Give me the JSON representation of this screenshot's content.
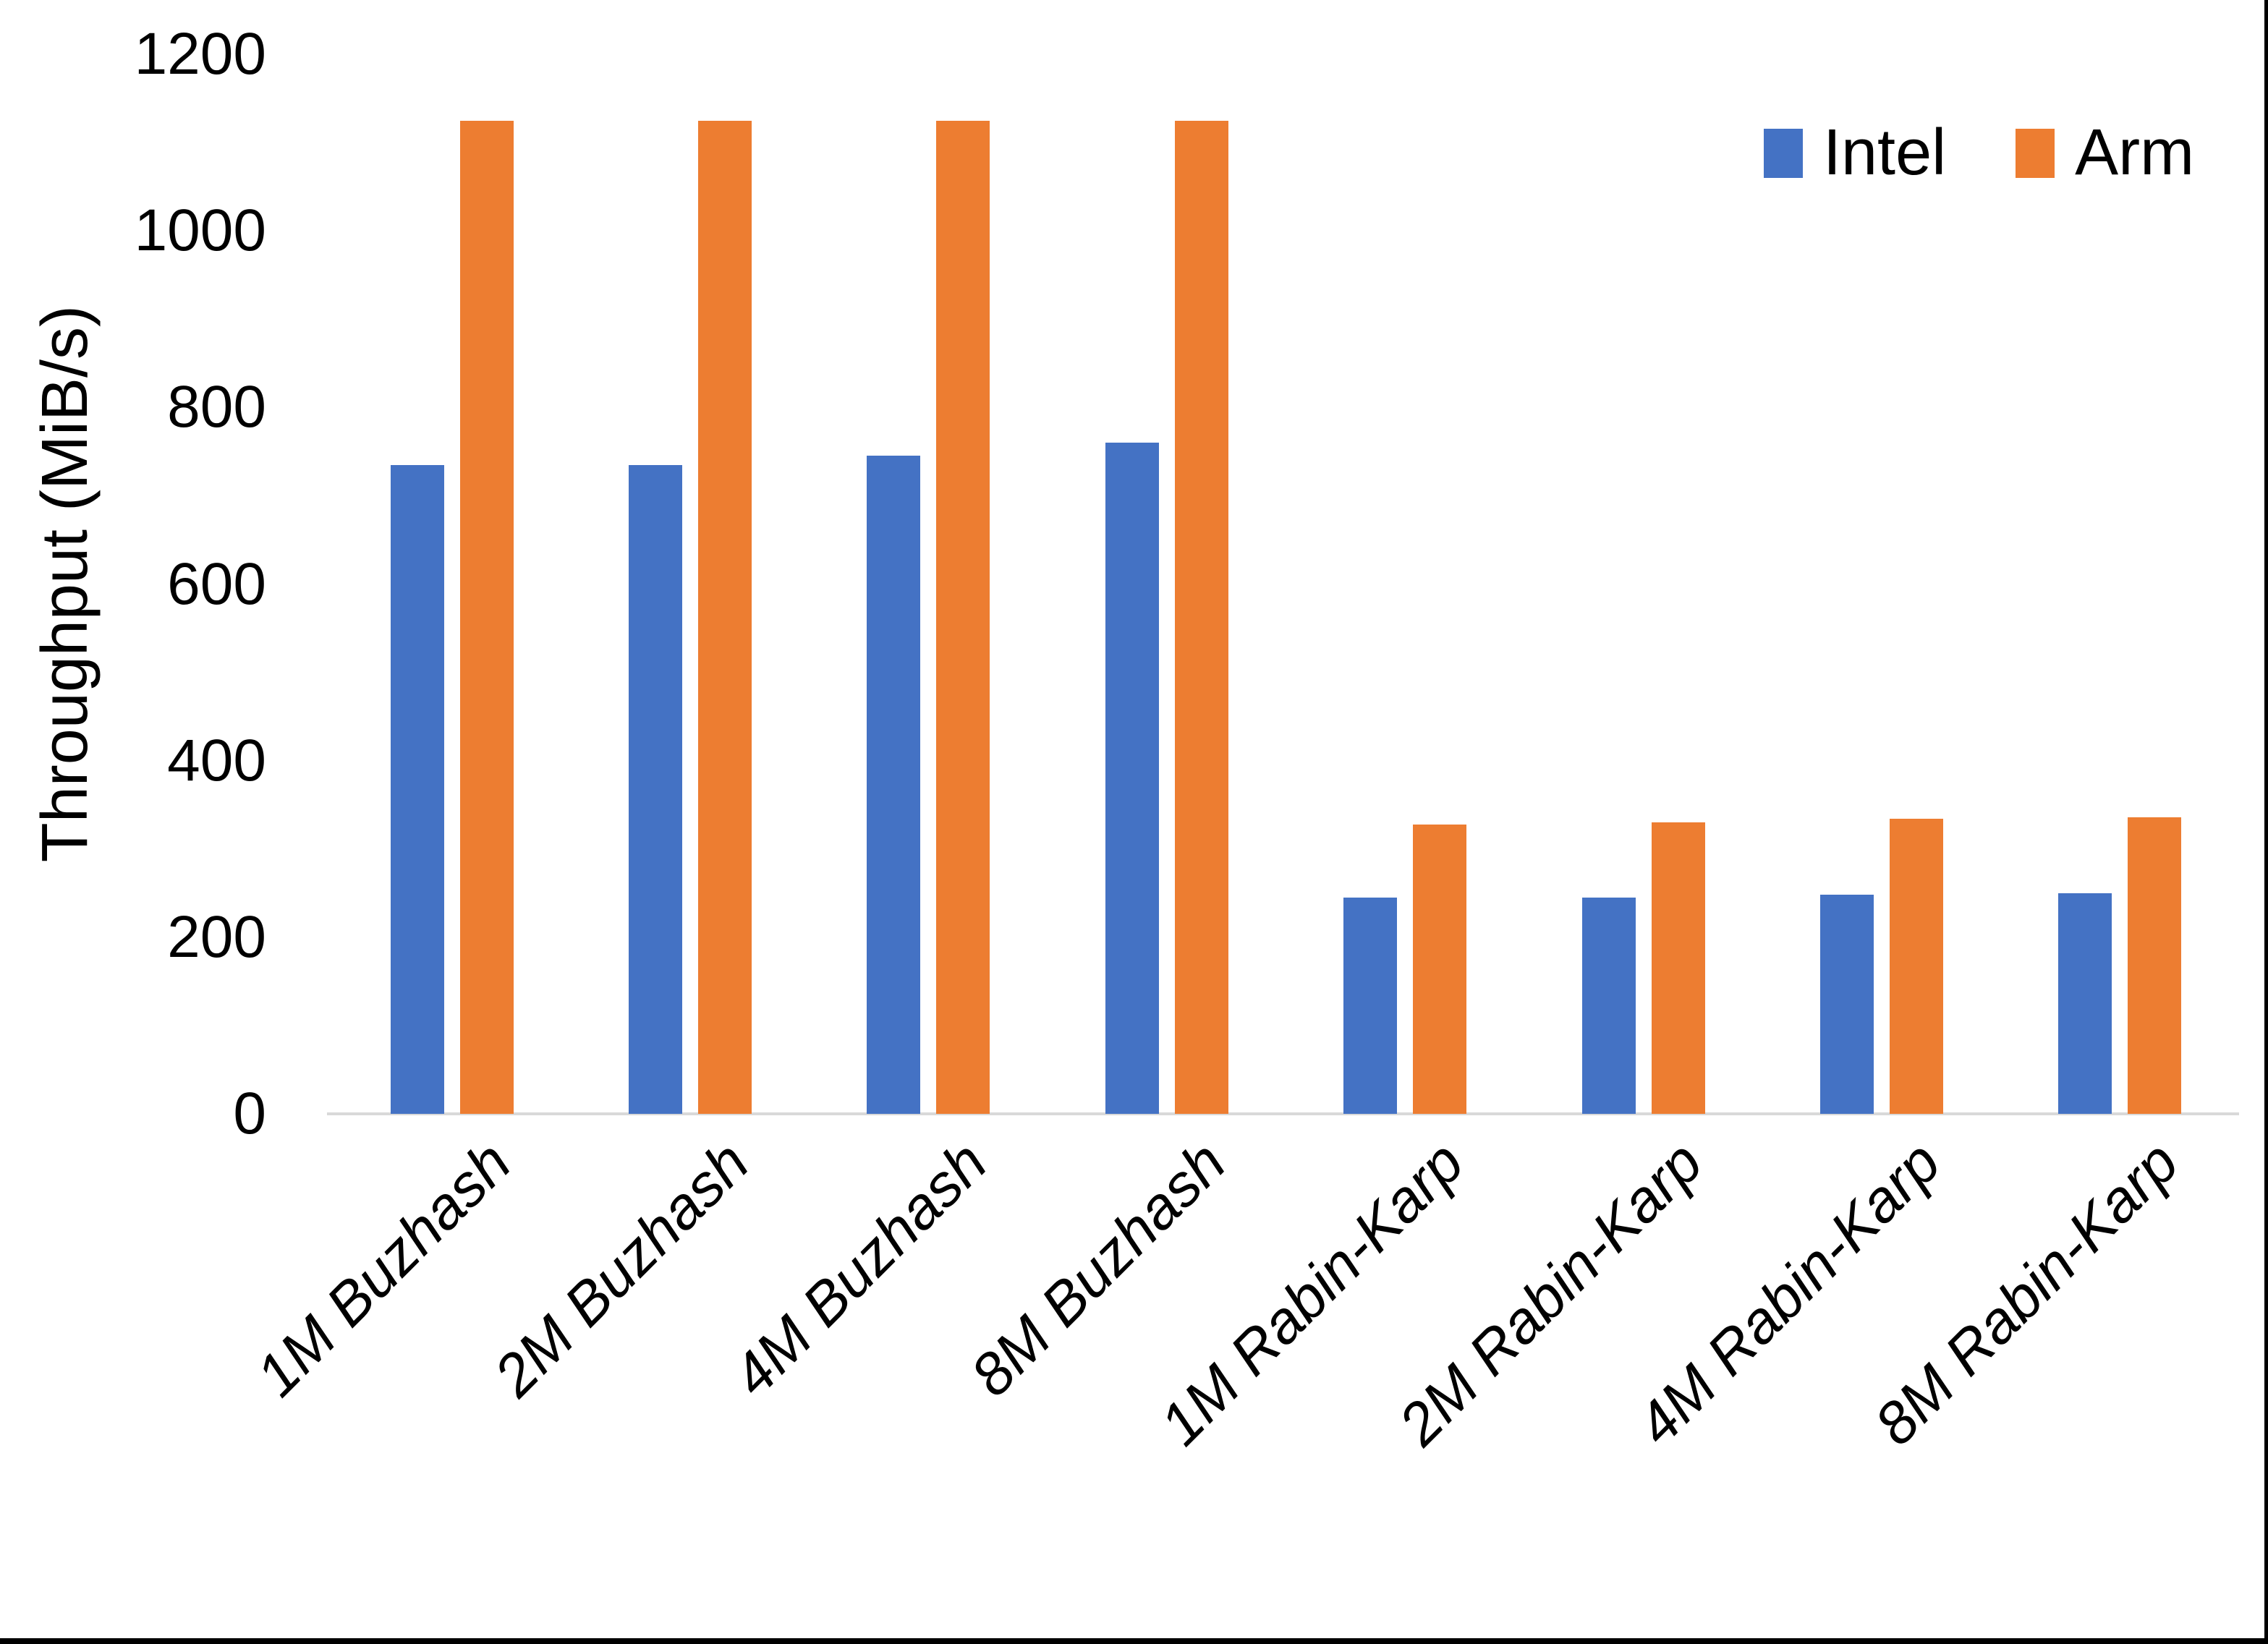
{
  "colors": {
    "intel": "#4472C4",
    "arm": "#ED7D31",
    "axis_line": "#D9D9D9",
    "text": "#000000",
    "frame_border": "#000000",
    "background": "#FFFFFF"
  },
  "legend": {
    "position": "top-right",
    "items": [
      {
        "label": "Intel",
        "color": "#4472C4"
      },
      {
        "label": "Arm",
        "color": "#ED7D31"
      }
    ]
  },
  "chart_data": {
    "type": "bar",
    "title": "",
    "xlabel": "",
    "ylabel": "Throughput (MiB/s)",
    "ylim": [
      0,
      1200
    ],
    "yticks": [
      0,
      200,
      400,
      600,
      800,
      1000,
      1200
    ],
    "grid": false,
    "legend_position": "top-right",
    "categories": [
      "1M Buzhash",
      "2M Buzhash",
      "4M Buzhash",
      "8M Buzhash",
      "1M Rabin-Karp",
      "2M Rabin-Karp",
      "4M Rabin-Karp",
      "8M Rabin-Karp"
    ],
    "series": [
      {
        "name": "Intel",
        "color": "#4472C4",
        "values": [
          735,
          735,
          745,
          760,
          245,
          245,
          248,
          250
        ]
      },
      {
        "name": "Arm",
        "color": "#ED7D31",
        "values": [
          1125,
          1125,
          1125,
          1125,
          328,
          330,
          334,
          336
        ]
      }
    ]
  }
}
